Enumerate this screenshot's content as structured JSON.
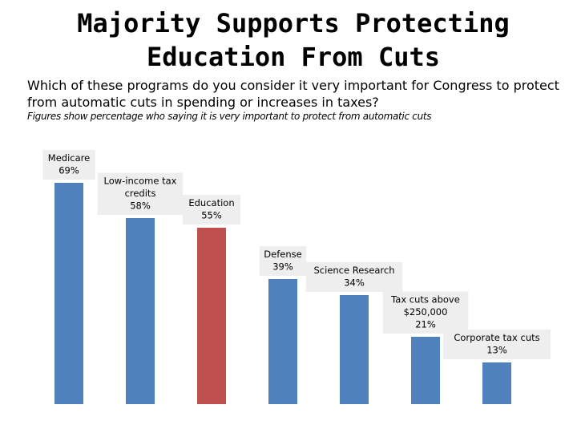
{
  "title_lines": [
    "Majority Supports Protecting",
    "Education From Cuts"
  ],
  "question": "Which of these programs do you consider it very important for Congress to protect from automatic cuts in spending or increases in taxes?",
  "note": "Figures show percentage who saying it is very important to protect from automatic cuts",
  "colors": {
    "bar": "#4f81bd",
    "highlight": "#c0504d",
    "label_bg": "#eeeeee"
  },
  "chart_data": {
    "type": "bar",
    "title": "Majority Supports Protecting Education From Cuts",
    "xlabel": "",
    "ylabel": "",
    "ylim": [
      0,
      73
    ],
    "categories": [
      "Medicare",
      "Low-income tax credits",
      "Education",
      "Defense",
      "Science Research",
      "Tax cuts above $250,000",
      "Corporate tax cuts"
    ],
    "values": [
      69,
      58,
      55,
      39,
      34,
      21,
      13
    ],
    "value_labels": [
      "69%",
      "58%",
      "55%",
      "39%",
      "34%",
      "21%",
      "13%"
    ],
    "label_lines": [
      [
        "Medicare",
        "69%"
      ],
      [
        "Low-income tax",
        "credits",
        "58%"
      ],
      [
        "Education",
        "55%"
      ],
      [
        "Defense",
        "39%"
      ],
      [
        "Science Research",
        "34%"
      ],
      [
        "Tax cuts above",
        "$250,000",
        "21%"
      ],
      [
        "Corporate tax cuts",
        "13%"
      ]
    ],
    "highlight": "Education",
    "grid": false,
    "legend": "none"
  }
}
